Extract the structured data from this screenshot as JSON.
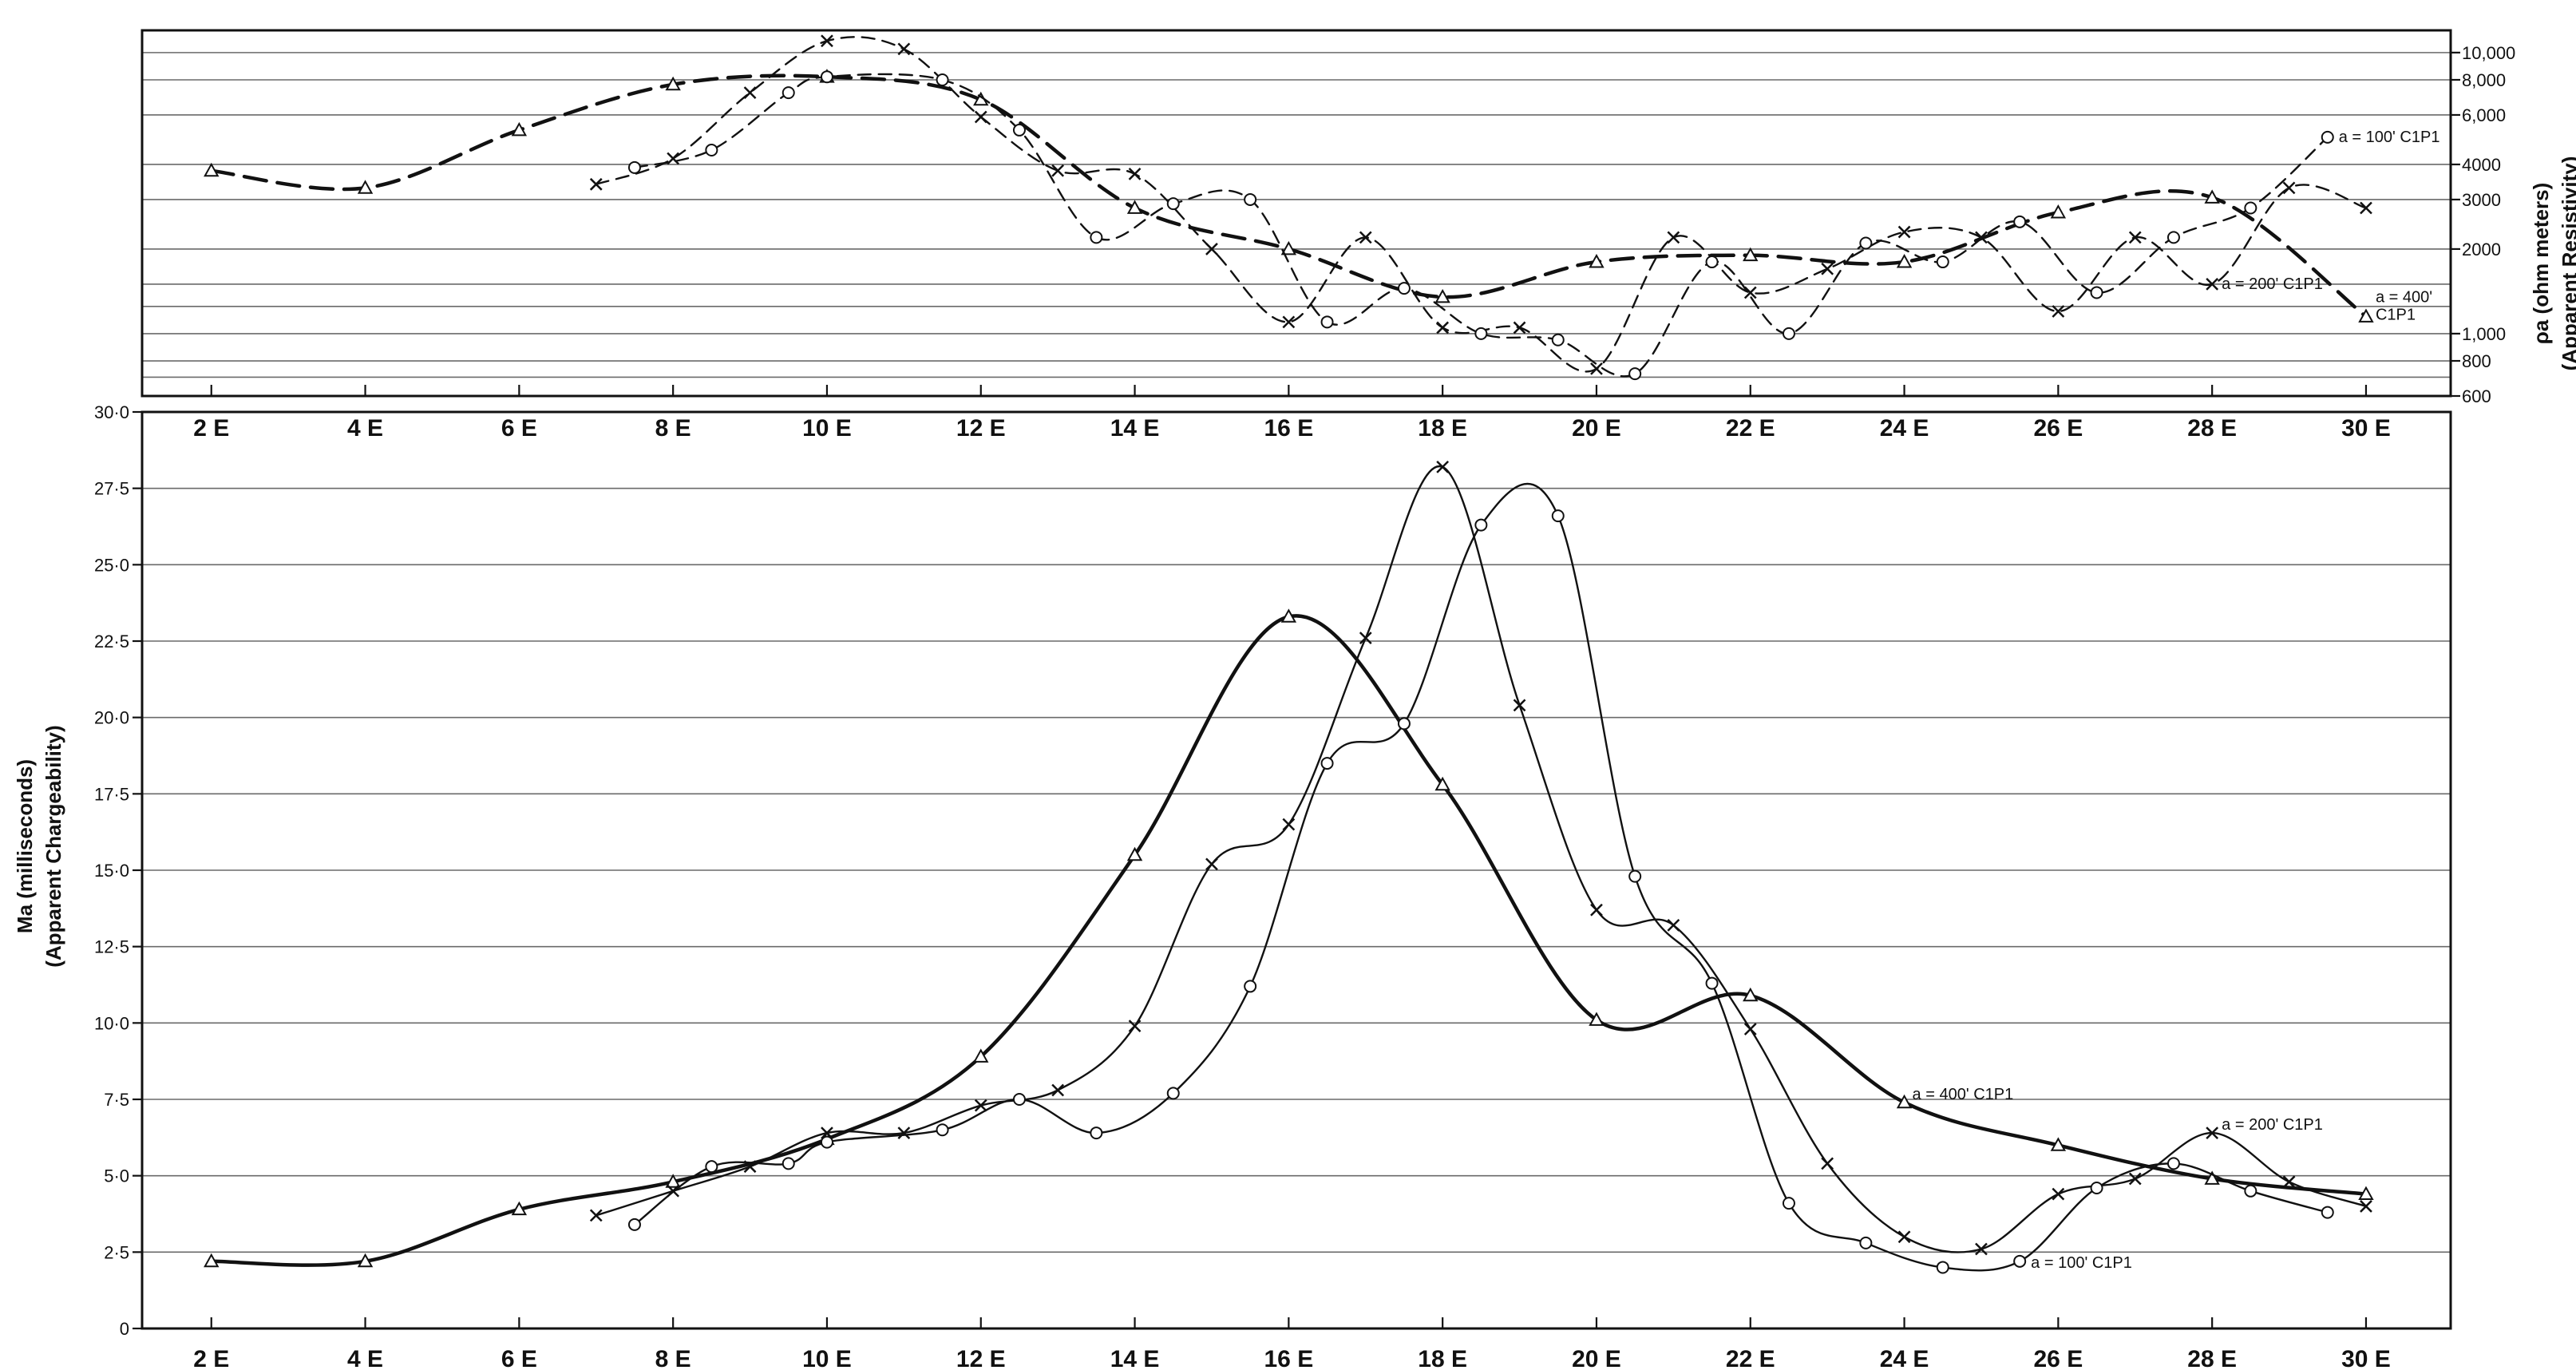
{
  "chart_data": [
    {
      "type": "line",
      "id": "resistivity",
      "y_scale": "log",
      "ylim": [
        600,
        12000
      ],
      "xlim": [
        1.1,
        31.1
      ],
      "x_tick_labels": [
        "2 E",
        "4 E",
        "6 E",
        "8 E",
        "10 E",
        "12 E",
        "14 E",
        "16 E",
        "18 E",
        "20 E",
        "22 E",
        "24 E",
        "26 E",
        "28 E",
        "30 E"
      ],
      "y_ticks": [
        600,
        800,
        1000,
        2000,
        3000,
        4000,
        6000,
        8000,
        10000
      ],
      "y_tick_labels": [
        "600",
        "800",
        "1,000",
        "2000",
        "3000",
        "4000",
        "6,000",
        "8,000",
        "10,000"
      ],
      "grid_values": [
        600,
        700,
        800,
        1000,
        1250,
        1500,
        2000,
        3000,
        4000,
        6000,
        8000,
        10000
      ],
      "ylabel": [
        "ρa (ohm meters)",
        "(Apparent Resistivity)"
      ],
      "series": [
        {
          "label": "a = 400' C1P1",
          "label_lines": [
            "a = 400'",
            "C1P1"
          ],
          "marker": "triangle",
          "dash": "long",
          "weight": "bold",
          "x": [
            2,
            4,
            6,
            8,
            10,
            12,
            14,
            16,
            18,
            20,
            22,
            24,
            26,
            28,
            30
          ],
          "y": [
            3800,
            3300,
            5300,
            7700,
            8200,
            6800,
            2800,
            2000,
            1350,
            1800,
            1900,
            1800,
            2700,
            3050,
            1150
          ]
        },
        {
          "label": "a = 200' C1P1",
          "label_lines": [
            "a = 200' C1P1"
          ],
          "marker": "x",
          "dash": "medium",
          "weight": "normal",
          "x": [
            7,
            8,
            9,
            10,
            11,
            12,
            13,
            14,
            15,
            16,
            17,
            18,
            19,
            20,
            21,
            22,
            23,
            24,
            25,
            26,
            27,
            28,
            29,
            30
          ],
          "y": [
            3400,
            4200,
            7200,
            11000,
            10300,
            5900,
            3800,
            3700,
            2000,
            1100,
            2200,
            1050,
            1050,
            750,
            2200,
            1400,
            1700,
            2300,
            2200,
            1200,
            2200,
            1500,
            3300,
            2800
          ]
        },
        {
          "label": "a = 100' C1P1",
          "label_lines": [
            "a = 100' C1P1"
          ],
          "marker": "circle",
          "dash": "medium",
          "weight": "normal",
          "x": [
            7.5,
            8.5,
            9.5,
            10,
            11.5,
            12.5,
            13.5,
            14.5,
            15.5,
            16.5,
            17.5,
            18.5,
            19.5,
            20.5,
            21.5,
            22.5,
            23.5,
            24.5,
            25.5,
            26.5,
            27.5,
            28.5,
            29.5
          ],
          "y": [
            3900,
            4500,
            7200,
            8200,
            8000,
            5300,
            2200,
            2900,
            3000,
            1100,
            1450,
            1000,
            950,
            720,
            1800,
            1000,
            2100,
            1800,
            2500,
            1400,
            2200,
            2800,
            5000
          ]
        }
      ]
    },
    {
      "type": "line",
      "id": "chargeability",
      "ylim": [
        0,
        30
      ],
      "xlim": [
        1.1,
        31.1
      ],
      "x_tick_labels": [
        "2 E",
        "4 E",
        "6 E",
        "8 E",
        "10 E",
        "12 E",
        "14 E",
        "16 E",
        "18 E",
        "20 E",
        "22 E",
        "24 E",
        "26 E",
        "28 E",
        "30 E"
      ],
      "y_ticks": [
        0,
        2.5,
        5,
        7.5,
        10,
        12.5,
        15,
        17.5,
        20,
        22.5,
        25,
        27.5,
        30
      ],
      "y_tick_labels": [
        "0",
        "2·5",
        "5·0",
        "7·5",
        "10·0",
        "12·5",
        "15·0",
        "17·5",
        "20·0",
        "22·5",
        "25·0",
        "27·5",
        "30·0"
      ],
      "ylabel": [
        "Ma (milliseconds)",
        "(Apparent Chargeability)"
      ],
      "series": [
        {
          "label": "a = 400' C1P1",
          "label_lines": [
            "a = 400' C1P1"
          ],
          "marker": "triangle",
          "dash": "solid",
          "weight": "bold",
          "x": [
            2,
            4,
            6,
            8,
            10,
            12,
            14,
            16,
            18,
            20,
            22,
            24,
            26,
            28,
            30
          ],
          "y": [
            2.2,
            2.2,
            3.9,
            4.8,
            6.2,
            8.9,
            15.5,
            23.3,
            17.8,
            10.1,
            10.9,
            7.4,
            6.0,
            4.9,
            4.4
          ]
        },
        {
          "label": "a = 200' C1P1",
          "label_lines": [
            "a = 200' C1P1"
          ],
          "marker": "x",
          "dash": "solid",
          "weight": "normal",
          "x": [
            7,
            8,
            9,
            10,
            11,
            12,
            13,
            14,
            15,
            16,
            17,
            18,
            19,
            20,
            21,
            22,
            23,
            24,
            25,
            26,
            27,
            28,
            29,
            30
          ],
          "y": [
            3.7,
            4.5,
            5.3,
            6.4,
            6.4,
            7.3,
            7.8,
            9.9,
            15.2,
            16.5,
            22.6,
            28.2,
            20.4,
            13.7,
            13.2,
            9.8,
            5.4,
            3.0,
            2.6,
            4.4,
            4.9,
            6.4,
            4.8,
            4.0
          ]
        },
        {
          "label": "a = 100' C1P1",
          "label_lines": [
            "a = 100' C1P1"
          ],
          "marker": "circle",
          "dash": "solid",
          "weight": "normal",
          "x": [
            7.5,
            8.5,
            9.5,
            10,
            11.5,
            12.5,
            13.5,
            14.5,
            15.5,
            16.5,
            17.5,
            18.5,
            19.5,
            20.5,
            21.5,
            22.5,
            23.5,
            24.5,
            25.5,
            26.5,
            27.5,
            28.5,
            29.5
          ],
          "y": [
            3.4,
            5.3,
            5.4,
            6.1,
            6.5,
            7.5,
            6.4,
            7.7,
            11.2,
            18.5,
            19.8,
            26.3,
            26.6,
            14.8,
            11.3,
            4.1,
            2.8,
            2.0,
            2.2,
            4.6,
            5.4,
            4.5,
            3.8
          ]
        }
      ]
    }
  ]
}
